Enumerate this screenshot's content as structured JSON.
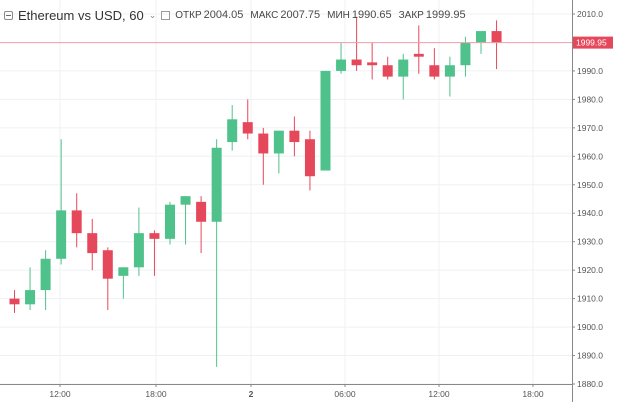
{
  "legend": {
    "symbol": "Ethereum vs USD, 60",
    "chevron_glyph": "⌄",
    "open_label": "ОТКР",
    "open_value": "2004.05",
    "high_label": "МАКС",
    "high_value": "2007.75",
    "low_label": "МИН",
    "low_value": "1990.65",
    "close_label": "ЗАКР",
    "close_value": "1999.95"
  },
  "colors": {
    "up": "#4fc18b",
    "down": "#e6485b",
    "grid": "#eef1f4",
    "axis": "#888888",
    "last_price_line": "#f3a0a8",
    "last_price_tag": "#e6485b"
  },
  "chart_data": {
    "type": "candlestick",
    "title": "Ethereum vs USD, 60",
    "ylim": [
      1880,
      2014
    ],
    "y_ticks": [
      1880,
      1890,
      1900,
      1910,
      1920,
      1930,
      1940,
      1950,
      1960,
      1970,
      1980,
      1990,
      2000,
      2010
    ],
    "x_tick_labels": [
      "12:00",
      "18:00",
      "2",
      "06:00",
      "12:00",
      "18:00"
    ],
    "last_price": 1999.95,
    "last_price_label": "1999.95",
    "grid": true,
    "candles": [
      {
        "open": 1910,
        "high": 1913,
        "low": 1905,
        "close": 1908
      },
      {
        "open": 1908,
        "high": 1921,
        "low": 1906,
        "close": 1913
      },
      {
        "open": 1913,
        "high": 1927,
        "low": 1906,
        "close": 1924
      },
      {
        "open": 1924,
        "high": 1966,
        "low": 1922,
        "close": 1941
      },
      {
        "open": 1941,
        "high": 1947,
        "low": 1928,
        "close": 1933
      },
      {
        "open": 1933,
        "high": 1938,
        "low": 1920,
        "close": 1926
      },
      {
        "open": 1927,
        "high": 1928,
        "low": 1906,
        "close": 1917
      },
      {
        "open": 1918,
        "high": 1921,
        "low": 1910,
        "close": 1921
      },
      {
        "open": 1921,
        "high": 1942,
        "low": 1918,
        "close": 1933
      },
      {
        "open": 1933,
        "high": 1934,
        "low": 1918,
        "close": 1931
      },
      {
        "open": 1931,
        "high": 1944,
        "low": 1929,
        "close": 1943
      },
      {
        "open": 1943,
        "high": 1946,
        "low": 1929,
        "close": 1946
      },
      {
        "open": 1944,
        "high": 1946,
        "low": 1926,
        "close": 1937
      },
      {
        "open": 1937,
        "high": 1966,
        "low": 1886,
        "close": 1963
      },
      {
        "open": 1965,
        "high": 1978,
        "low": 1962,
        "close": 1973
      },
      {
        "open": 1972,
        "high": 1980,
        "low": 1966,
        "close": 1968
      },
      {
        "open": 1968,
        "high": 1970,
        "low": 1950,
        "close": 1961
      },
      {
        "open": 1961,
        "high": 1969,
        "low": 1954,
        "close": 1969
      },
      {
        "open": 1969,
        "high": 1974,
        "low": 1960,
        "close": 1965
      },
      {
        "open": 1966,
        "high": 1969,
        "low": 1948,
        "close": 1953
      },
      {
        "open": 1955,
        "high": 1990,
        "low": 1955,
        "close": 1990
      },
      {
        "open": 1990,
        "high": 2000,
        "low": 1989,
        "close": 1994
      },
      {
        "open": 1994,
        "high": 2009,
        "low": 1990,
        "close": 1992
      },
      {
        "open": 1993,
        "high": 2000,
        "low": 1987,
        "close": 1992
      },
      {
        "open": 1992,
        "high": 1995,
        "low": 1987,
        "close": 1988
      },
      {
        "open": 1988,
        "high": 1996,
        "low": 1980,
        "close": 1994
      },
      {
        "open": 1996,
        "high": 2006,
        "low": 1989,
        "close": 1995
      },
      {
        "open": 1992,
        "high": 1998,
        "low": 1987,
        "close": 1988
      },
      {
        "open": 1988,
        "high": 1995,
        "low": 1981,
        "close": 1992
      },
      {
        "open": 1992,
        "high": 2002,
        "low": 1988,
        "close": 2000
      },
      {
        "open": 2000,
        "high": 2003,
        "low": 1996,
        "close": 2004
      },
      {
        "open": 2004,
        "high": 2007.75,
        "low": 1990.65,
        "close": 1999.95
      }
    ]
  }
}
